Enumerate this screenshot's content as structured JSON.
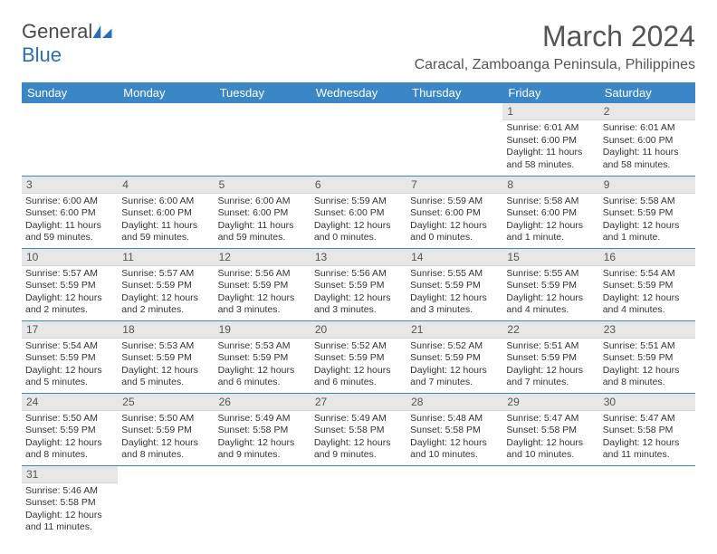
{
  "brand": {
    "part1": "General",
    "part2": "Blue"
  },
  "title": {
    "month": "March 2024",
    "location": "Caracal, Zamboanga Peninsula, Philippines"
  },
  "colors": {
    "header_bg": "#3b86c6",
    "header_text": "#ffffff",
    "daynum_bg": "#e7e7e7",
    "row_border": "#3b86c6",
    "brand_gray": "#4a4a4a",
    "brand_blue": "#2a6fb5"
  },
  "weekdays": [
    "Sunday",
    "Monday",
    "Tuesday",
    "Wednesday",
    "Thursday",
    "Friday",
    "Saturday"
  ],
  "weeks": [
    [
      {
        "empty": true
      },
      {
        "empty": true
      },
      {
        "empty": true
      },
      {
        "empty": true
      },
      {
        "empty": true
      },
      {
        "day": "1",
        "sunrise": "Sunrise: 6:01 AM",
        "sunset": "Sunset: 6:00 PM",
        "daylight": "Daylight: 11 hours and 58 minutes."
      },
      {
        "day": "2",
        "sunrise": "Sunrise: 6:01 AM",
        "sunset": "Sunset: 6:00 PM",
        "daylight": "Daylight: 11 hours and 58 minutes."
      }
    ],
    [
      {
        "day": "3",
        "sunrise": "Sunrise: 6:00 AM",
        "sunset": "Sunset: 6:00 PM",
        "daylight": "Daylight: 11 hours and 59 minutes."
      },
      {
        "day": "4",
        "sunrise": "Sunrise: 6:00 AM",
        "sunset": "Sunset: 6:00 PM",
        "daylight": "Daylight: 11 hours and 59 minutes."
      },
      {
        "day": "5",
        "sunrise": "Sunrise: 6:00 AM",
        "sunset": "Sunset: 6:00 PM",
        "daylight": "Daylight: 11 hours and 59 minutes."
      },
      {
        "day": "6",
        "sunrise": "Sunrise: 5:59 AM",
        "sunset": "Sunset: 6:00 PM",
        "daylight": "Daylight: 12 hours and 0 minutes."
      },
      {
        "day": "7",
        "sunrise": "Sunrise: 5:59 AM",
        "sunset": "Sunset: 6:00 PM",
        "daylight": "Daylight: 12 hours and 0 minutes."
      },
      {
        "day": "8",
        "sunrise": "Sunrise: 5:58 AM",
        "sunset": "Sunset: 6:00 PM",
        "daylight": "Daylight: 12 hours and 1 minute."
      },
      {
        "day": "9",
        "sunrise": "Sunrise: 5:58 AM",
        "sunset": "Sunset: 5:59 PM",
        "daylight": "Daylight: 12 hours and 1 minute."
      }
    ],
    [
      {
        "day": "10",
        "sunrise": "Sunrise: 5:57 AM",
        "sunset": "Sunset: 5:59 PM",
        "daylight": "Daylight: 12 hours and 2 minutes."
      },
      {
        "day": "11",
        "sunrise": "Sunrise: 5:57 AM",
        "sunset": "Sunset: 5:59 PM",
        "daylight": "Daylight: 12 hours and 2 minutes."
      },
      {
        "day": "12",
        "sunrise": "Sunrise: 5:56 AM",
        "sunset": "Sunset: 5:59 PM",
        "daylight": "Daylight: 12 hours and 3 minutes."
      },
      {
        "day": "13",
        "sunrise": "Sunrise: 5:56 AM",
        "sunset": "Sunset: 5:59 PM",
        "daylight": "Daylight: 12 hours and 3 minutes."
      },
      {
        "day": "14",
        "sunrise": "Sunrise: 5:55 AM",
        "sunset": "Sunset: 5:59 PM",
        "daylight": "Daylight: 12 hours and 3 minutes."
      },
      {
        "day": "15",
        "sunrise": "Sunrise: 5:55 AM",
        "sunset": "Sunset: 5:59 PM",
        "daylight": "Daylight: 12 hours and 4 minutes."
      },
      {
        "day": "16",
        "sunrise": "Sunrise: 5:54 AM",
        "sunset": "Sunset: 5:59 PM",
        "daylight": "Daylight: 12 hours and 4 minutes."
      }
    ],
    [
      {
        "day": "17",
        "sunrise": "Sunrise: 5:54 AM",
        "sunset": "Sunset: 5:59 PM",
        "daylight": "Daylight: 12 hours and 5 minutes."
      },
      {
        "day": "18",
        "sunrise": "Sunrise: 5:53 AM",
        "sunset": "Sunset: 5:59 PM",
        "daylight": "Daylight: 12 hours and 5 minutes."
      },
      {
        "day": "19",
        "sunrise": "Sunrise: 5:53 AM",
        "sunset": "Sunset: 5:59 PM",
        "daylight": "Daylight: 12 hours and 6 minutes."
      },
      {
        "day": "20",
        "sunrise": "Sunrise: 5:52 AM",
        "sunset": "Sunset: 5:59 PM",
        "daylight": "Daylight: 12 hours and 6 minutes."
      },
      {
        "day": "21",
        "sunrise": "Sunrise: 5:52 AM",
        "sunset": "Sunset: 5:59 PM",
        "daylight": "Daylight: 12 hours and 7 minutes."
      },
      {
        "day": "22",
        "sunrise": "Sunrise: 5:51 AM",
        "sunset": "Sunset: 5:59 PM",
        "daylight": "Daylight: 12 hours and 7 minutes."
      },
      {
        "day": "23",
        "sunrise": "Sunrise: 5:51 AM",
        "sunset": "Sunset: 5:59 PM",
        "daylight": "Daylight: 12 hours and 8 minutes."
      }
    ],
    [
      {
        "day": "24",
        "sunrise": "Sunrise: 5:50 AM",
        "sunset": "Sunset: 5:59 PM",
        "daylight": "Daylight: 12 hours and 8 minutes."
      },
      {
        "day": "25",
        "sunrise": "Sunrise: 5:50 AM",
        "sunset": "Sunset: 5:59 PM",
        "daylight": "Daylight: 12 hours and 8 minutes."
      },
      {
        "day": "26",
        "sunrise": "Sunrise: 5:49 AM",
        "sunset": "Sunset: 5:58 PM",
        "daylight": "Daylight: 12 hours and 9 minutes."
      },
      {
        "day": "27",
        "sunrise": "Sunrise: 5:49 AM",
        "sunset": "Sunset: 5:58 PM",
        "daylight": "Daylight: 12 hours and 9 minutes."
      },
      {
        "day": "28",
        "sunrise": "Sunrise: 5:48 AM",
        "sunset": "Sunset: 5:58 PM",
        "daylight": "Daylight: 12 hours and 10 minutes."
      },
      {
        "day": "29",
        "sunrise": "Sunrise: 5:47 AM",
        "sunset": "Sunset: 5:58 PM",
        "daylight": "Daylight: 12 hours and 10 minutes."
      },
      {
        "day": "30",
        "sunrise": "Sunrise: 5:47 AM",
        "sunset": "Sunset: 5:58 PM",
        "daylight": "Daylight: 12 hours and 11 minutes."
      }
    ],
    [
      {
        "day": "31",
        "sunrise": "Sunrise: 5:46 AM",
        "sunset": "Sunset: 5:58 PM",
        "daylight": "Daylight: 12 hours and 11 minutes."
      },
      {
        "empty": true
      },
      {
        "empty": true
      },
      {
        "empty": true
      },
      {
        "empty": true
      },
      {
        "empty": true
      },
      {
        "empty": true
      }
    ]
  ]
}
